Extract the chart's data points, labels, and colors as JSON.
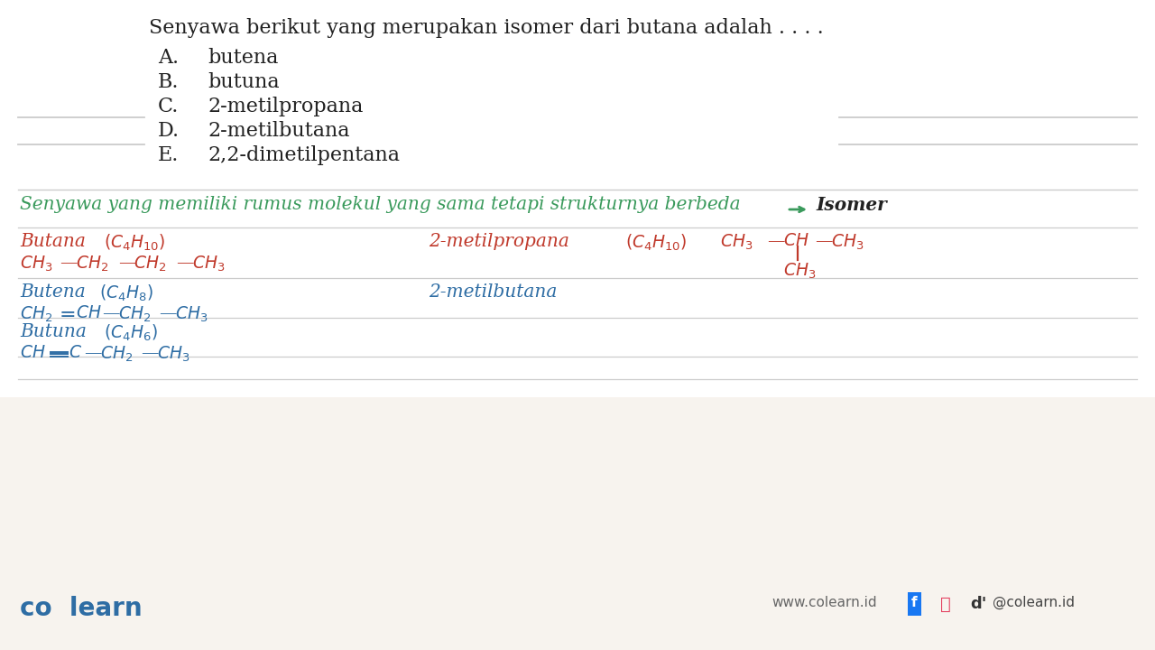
{
  "bg_top": "#ffffff",
  "bg_bottom": "#f7f3ee",
  "question_text": "Senyawa berikut yang merupakan isomer dari butana adalah . . . .",
  "options": [
    {
      "letter": "A.",
      "text": "butena"
    },
    {
      "letter": "B.",
      "text": "butuna"
    },
    {
      "letter": "C.",
      "text": "2-metilpropana"
    },
    {
      "letter": "D.",
      "text": "2-metilbutana"
    },
    {
      "letter": "E.",
      "text": "2,2-dimetilpentana"
    }
  ],
  "green_color": "#3a9a5c",
  "red_color": "#c0392b",
  "blue_color": "#2e6da4",
  "dark_color": "#222222",
  "gray_line": "#cccccc",
  "footer_blue": "#2e6da4"
}
